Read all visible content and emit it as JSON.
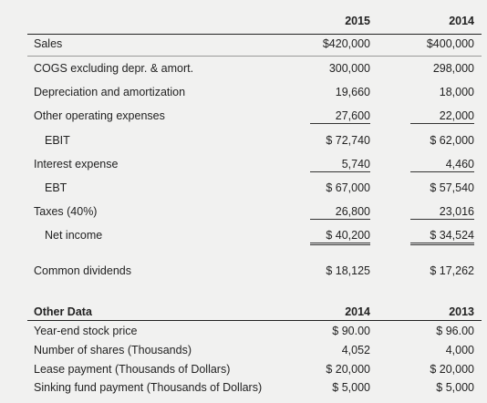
{
  "income_statement": {
    "years": [
      "2015",
      "2014"
    ],
    "rows": [
      [
        "Sales",
        "$420,000",
        "$400,000"
      ],
      [
        "COGS excluding depr. & amort.",
        "300,000",
        "298,000"
      ],
      [
        "Depreciation and amortization",
        "19,660",
        "18,000"
      ],
      [
        "Other operating expenses",
        "27,600",
        "22,000"
      ],
      [
        "EBIT",
        "$ 72,740",
        "$ 62,000"
      ],
      [
        "Interest expense",
        "5,740",
        "4,460"
      ],
      [
        "EBT",
        "$ 67,000",
        "$ 57,540"
      ],
      [
        "Taxes (40%)",
        "26,800",
        "23,016"
      ],
      [
        "Net income",
        "$ 40,200",
        "$ 34,524"
      ],
      [
        "Common dividends",
        "$ 18,125",
        "$ 17,262"
      ]
    ]
  },
  "other_data": {
    "title": "Other Data",
    "years": [
      "2014",
      "2013"
    ],
    "rows": [
      [
        "Year-end stock price",
        "$ 90.00",
        "$ 96.00"
      ],
      [
        "Number of shares (Thousands)",
        "4,052",
        "4,000"
      ],
      [
        "Lease payment (Thousands of Dollars)",
        "$ 20,000",
        "$ 20,000"
      ],
      [
        "Sinking fund payment (Thousands of Dollars)",
        "$ 5,000",
        "$ 5,000"
      ]
    ]
  }
}
